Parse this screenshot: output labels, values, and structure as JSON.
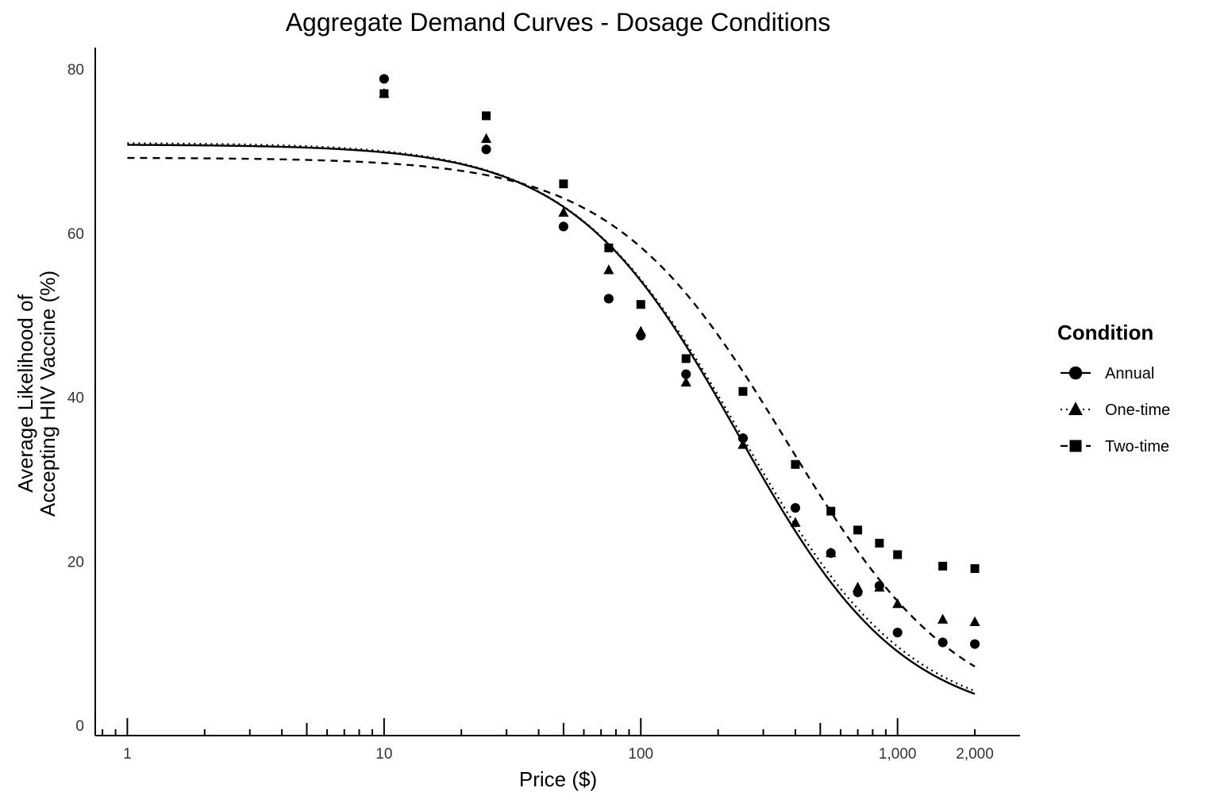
{
  "chart_data": {
    "type": "scatter",
    "title": "Aggregate Demand Curves - Dosage Conditions",
    "xlabel": "Price ($)",
    "ylabel_lines": [
      "Average Likelihood of",
      "Accepting HIV Vaccine (%)"
    ],
    "xscale": "log10",
    "xlim": [
      0.75,
      3000
    ],
    "ylim": [
      0,
      82
    ],
    "x_ticks": [
      {
        "value": 1,
        "label": "1"
      },
      {
        "value": 10,
        "label": "10"
      },
      {
        "value": 100,
        "label": "100"
      },
      {
        "value": 1000,
        "label": "1,000"
      },
      {
        "value": 2000,
        "label": "2,000"
      }
    ],
    "y_ticks": [
      {
        "value": 0,
        "label": "0"
      },
      {
        "value": 20,
        "label": "20"
      },
      {
        "value": 40,
        "label": "40"
      },
      {
        "value": 60,
        "label": "60"
      },
      {
        "value": 80,
        "label": "80"
      }
    ],
    "grid": false,
    "legend": {
      "title": "Condition",
      "position": "right"
    },
    "x": [
      10,
      25,
      50,
      75,
      100,
      150,
      250,
      400,
      550,
      700,
      850,
      1000,
      1500,
      2000
    ],
    "series": [
      {
        "name": "Annual",
        "marker": "circle",
        "line": "solid",
        "values": [
          78.8,
          70.2,
          60.8,
          52.0,
          47.5,
          42.8,
          35.0,
          26.5,
          21.0,
          16.2,
          17.0,
          11.3,
          10.1,
          9.9
        ],
        "fit": {
          "q0": 70.8,
          "half_price": 240,
          "slope": 1.35
        }
      },
      {
        "name": "One-time",
        "marker": "triangle",
        "line": "dotted",
        "values": [
          77.0,
          71.5,
          62.5,
          55.5,
          48.0,
          41.8,
          34.2,
          24.7,
          21.0,
          16.8,
          16.8,
          14.8,
          12.9,
          12.6
        ],
        "fit": {
          "q0": 71.0,
          "half_price": 245,
          "slope": 1.32
        }
      },
      {
        "name": "Two-time",
        "marker": "square",
        "line": "dashed",
        "values": [
          77.0,
          74.3,
          66.0,
          58.2,
          51.3,
          44.7,
          40.7,
          31.8,
          26.1,
          23.8,
          22.2,
          20.8,
          19.4,
          19.1
        ],
        "fit": {
          "q0": 69.2,
          "half_price": 370,
          "slope": 1.28
        }
      }
    ]
  }
}
